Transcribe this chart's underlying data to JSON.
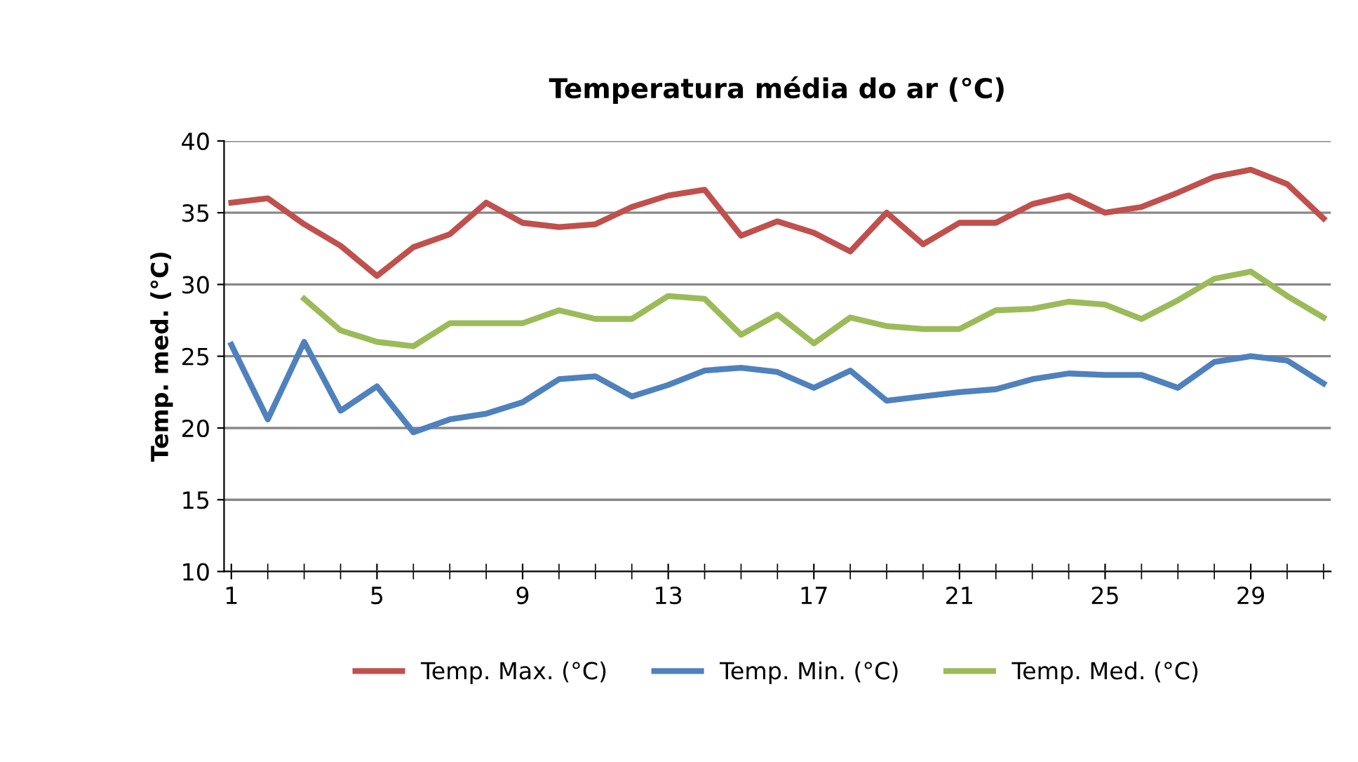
{
  "chart_data": {
    "type": "line",
    "title": "Temperatura média do ar (°C)",
    "ylabel": "Temp. med. (°C)",
    "categories": [
      "1",
      null,
      null,
      null,
      "5",
      null,
      null,
      null,
      "9",
      null,
      null,
      null,
      "13",
      null,
      null,
      null,
      "17",
      null,
      null,
      null,
      "21",
      null,
      null,
      null,
      "25",
      null,
      null,
      null,
      "29",
      null,
      null
    ],
    "series": [
      {
        "name": "Temp. Max. (°C)",
        "color": "#c0504d",
        "values": [
          35.7,
          36.0,
          34.2,
          32.7,
          30.6,
          32.6,
          33.5,
          35.7,
          34.3,
          34.0,
          34.2,
          35.4,
          36.2,
          36.6,
          33.4,
          34.4,
          33.6,
          32.3,
          35.0,
          32.8,
          34.3,
          34.3,
          35.6,
          36.2,
          35.0,
          35.4,
          36.4,
          37.5,
          38.0,
          37.0,
          34.6
        ]
      },
      {
        "name": "Temp. Min. (°C)",
        "color": "#4f81bd",
        "values": [
          25.8,
          20.6,
          26.0,
          21.2,
          22.9,
          19.7,
          20.6,
          21.0,
          21.8,
          23.4,
          23.6,
          22.2,
          23.0,
          24.0,
          24.2,
          23.9,
          22.8,
          24.0,
          21.9,
          22.2,
          22.5,
          22.7,
          23.4,
          23.8,
          23.7,
          23.7,
          22.8,
          24.6,
          25.0,
          24.7,
          23.1
        ]
      },
      {
        "name": "Temp. Med. (°C)",
        "color": "#9bbb59",
        "values": [
          null,
          null,
          29.0,
          26.8,
          26.0,
          25.7,
          27.3,
          27.3,
          27.3,
          28.2,
          27.6,
          27.6,
          29.2,
          29.0,
          26.5,
          27.9,
          25.9,
          27.7,
          27.1,
          26.9,
          26.9,
          28.2,
          28.3,
          28.8,
          28.6,
          27.6,
          28.9,
          30.4,
          30.9,
          29.2,
          27.7
        ]
      }
    ],
    "ylim": [
      10,
      40
    ],
    "yticks": [
      10,
      15,
      20,
      25,
      30,
      35,
      40
    ],
    "grid": "y",
    "legend": "bottom",
    "marker": "none",
    "line_style": "solid"
  }
}
